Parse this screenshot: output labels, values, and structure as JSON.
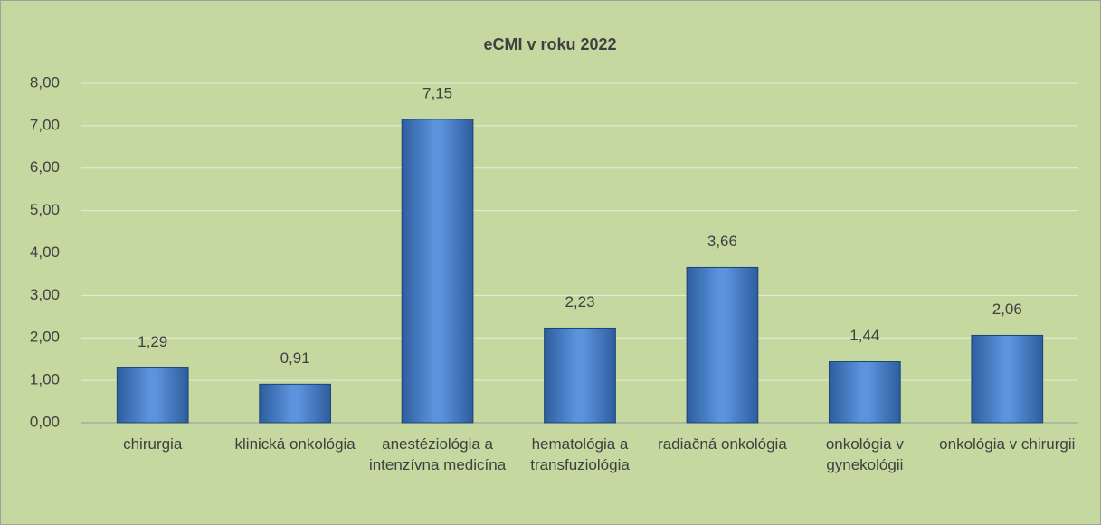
{
  "chart_data": {
    "type": "bar",
    "title": "eCMI v roku 2022",
    "categories": [
      "chirurgia",
      "klinická onkológia",
      "anestéziológia a intenzívna medicína",
      "hematológia a transfuziológia",
      "radiačná onkológia",
      "onkológia v gynekológii",
      "onkológia v chirurgii"
    ],
    "values": [
      1.29,
      0.91,
      7.15,
      2.23,
      3.66,
      1.44,
      2.06
    ],
    "value_labels": [
      "1,29",
      "0,91",
      "7,15",
      "2,23",
      "3,66",
      "1,44",
      "2,06"
    ],
    "color": "#4a7fc8",
    "ylim": [
      0,
      8
    ],
    "yticks": [
      {
        "value": 0,
        "label": "0,00"
      },
      {
        "value": 1,
        "label": "1,00"
      },
      {
        "value": 2,
        "label": "2,00"
      },
      {
        "value": 3,
        "label": "3,00"
      },
      {
        "value": 4,
        "label": "4,00"
      },
      {
        "value": 5,
        "label": "5,00"
      },
      {
        "value": 6,
        "label": "6,00"
      },
      {
        "value": 7,
        "label": "7,00"
      },
      {
        "value": 8,
        "label": "8,00"
      }
    ],
    "grid": true
  }
}
